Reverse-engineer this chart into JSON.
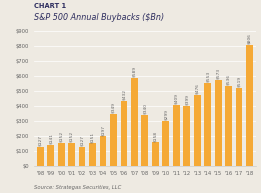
{
  "title_line1": "CHART 1",
  "title_line2": "S&P 500 Annual Buybacks ($Bn)",
  "source": "Source: Strategas Securities, LLC",
  "categories": [
    "'98",
    "'99",
    "'00",
    "'01",
    "'02",
    "'03",
    "'04",
    "'05",
    "'06",
    "'07",
    "'08",
    "'09",
    "'10",
    "'11",
    "'12",
    "'13",
    "'14",
    "'15",
    "'16",
    "'17",
    "'18"
  ],
  "values": [
    127,
    141,
    152,
    152,
    127,
    151,
    197,
    349,
    432,
    589,
    340,
    158,
    299,
    409,
    399,
    476,
    553,
    573,
    536,
    519,
    806
  ],
  "bar_color": "#F5A935",
  "background_color": "#EEEAE2",
  "ylim": [
    0,
    900
  ],
  "yticks": [
    0,
    100,
    200,
    300,
    400,
    500,
    600,
    700,
    800,
    900
  ],
  "ytick_labels": [
    "$0",
    "$100",
    "$200",
    "$300",
    "$400",
    "$500",
    "$600",
    "$700",
    "$800",
    "$900"
  ],
  "title_line1_fontsize": 4.8,
  "title_line2_fontsize": 5.8,
  "source_fontsize": 3.8,
  "label_fontsize": 3.2,
  "tick_fontsize": 3.8,
  "title1_color": "#2d2d5e",
  "title2_color": "#2d2d5e",
  "axis_color": "#cccccc",
  "text_color": "#666666",
  "grid_color": "#ffffff"
}
